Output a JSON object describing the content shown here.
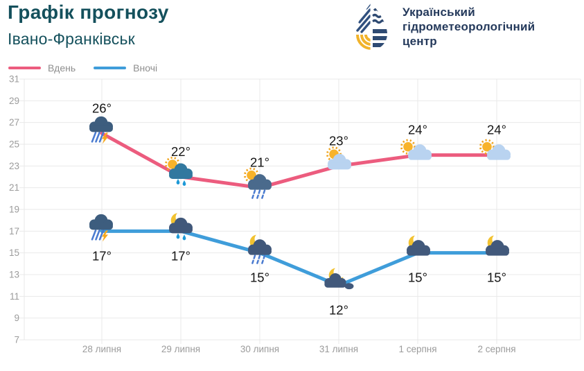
{
  "header": {
    "title": "Графік прогнозу",
    "subtitle": "Івано-Франківськ",
    "logo": {
      "icon": "uhmc-water-drop-logo",
      "org_name_lines": [
        "Український",
        "гідрометеорологічний",
        "центр"
      ]
    }
  },
  "legend": {
    "day_label": "Вдень",
    "night_label": "Вночі"
  },
  "colors": {
    "day_line": "#ec5c7e",
    "night_line": "#3f9dda",
    "title_text": "#14505c",
    "logo_text": "#24395b",
    "axis_text": "#9b9b9b",
    "grid_line": "#e9e9e9",
    "temp_label": "#161616",
    "legend_text": "#8e8e8e"
  },
  "chart_data": {
    "type": "line",
    "title": "Графік прогнозу — Івано-Франківськ",
    "categories": [
      "28 липня",
      "29 липня",
      "30 липня",
      "31 липня",
      "1 серпня",
      "2 серпня"
    ],
    "y_ticks": [
      31,
      29,
      27,
      25,
      23,
      21,
      19,
      17,
      15,
      13,
      11,
      9,
      7
    ],
    "ylim": [
      7,
      31
    ],
    "grid": true,
    "legend_position": "top-left",
    "series": [
      {
        "name": "Вдень",
        "color": "#ec5c7e",
        "values": [
          26,
          22,
          21,
          23,
          24,
          24
        ],
        "labels": [
          "26°",
          "22°",
          "21°",
          "23°",
          "24°",
          "24°"
        ],
        "label_position": "above",
        "icons": [
          "cloud-rain-lightning",
          "sun-cloud-rain",
          "sun-cloud-showers",
          "sun-cloud",
          "sun-cloud-light",
          "sun-cloud-light"
        ]
      },
      {
        "name": "Вночі",
        "color": "#3f9dda",
        "values": [
          17,
          17,
          15,
          12,
          15,
          15
        ],
        "labels": [
          "17°",
          "17°",
          "15°",
          "12°",
          "15°",
          "15°"
        ],
        "label_position": "below",
        "icons": [
          "cloud-rain-lightning",
          "moon-cloud-rain",
          "moon-cloud-showers",
          "moon-clouds",
          "moon-cloud",
          "moon-cloud"
        ]
      }
    ]
  }
}
